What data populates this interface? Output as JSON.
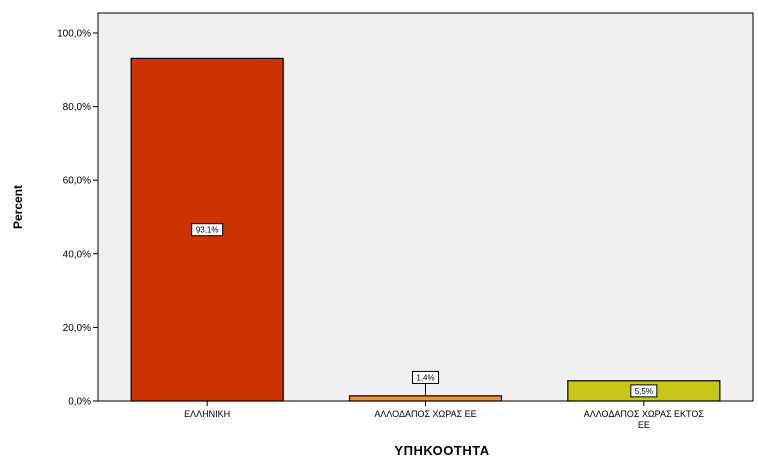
{
  "chart_data": {
    "type": "bar",
    "categories": [
      "ΕΛΛΗΝΙΚΗ",
      "ΑΛΛΟΔΑΠΟΣ ΧΩΡΑΣ ΕΕ",
      "ΑΛΛΟΔΑΠΟΣ ΧΩΡΑΣ ΕΚΤΟΣ ΕΕ"
    ],
    "category_lines": [
      [
        "ΕΛΛΗΝΙΚΗ"
      ],
      [
        "ΑΛΛΟΔΑΠΟΣ ΧΩΡΑΣ ΕΕ"
      ],
      [
        "ΑΛΛΟΔΑΠΟΣ ΧΩΡΑΣ ΕΚΤΟΣ",
        "ΕΕ"
      ]
    ],
    "values": [
      93.1,
      1.4,
      5.5
    ],
    "data_labels": [
      "93,1%",
      "1,4%",
      "5,5%"
    ],
    "colors": [
      "#cc3300",
      "#e8923a",
      "#c8c814"
    ],
    "xlabel": "ΥΠΗΚΟΟΤΗΤΑ",
    "ylabel": "Percent",
    "ylim": [
      0,
      100
    ],
    "yticks": [
      0,
      20,
      40,
      60,
      80,
      100
    ],
    "ytick_labels": [
      "0,0%",
      "20,0%",
      "40,0%",
      "60,0%",
      "80,0%",
      "100,0%"
    ],
    "plot_background": "#f0f0f0",
    "grid": false
  }
}
